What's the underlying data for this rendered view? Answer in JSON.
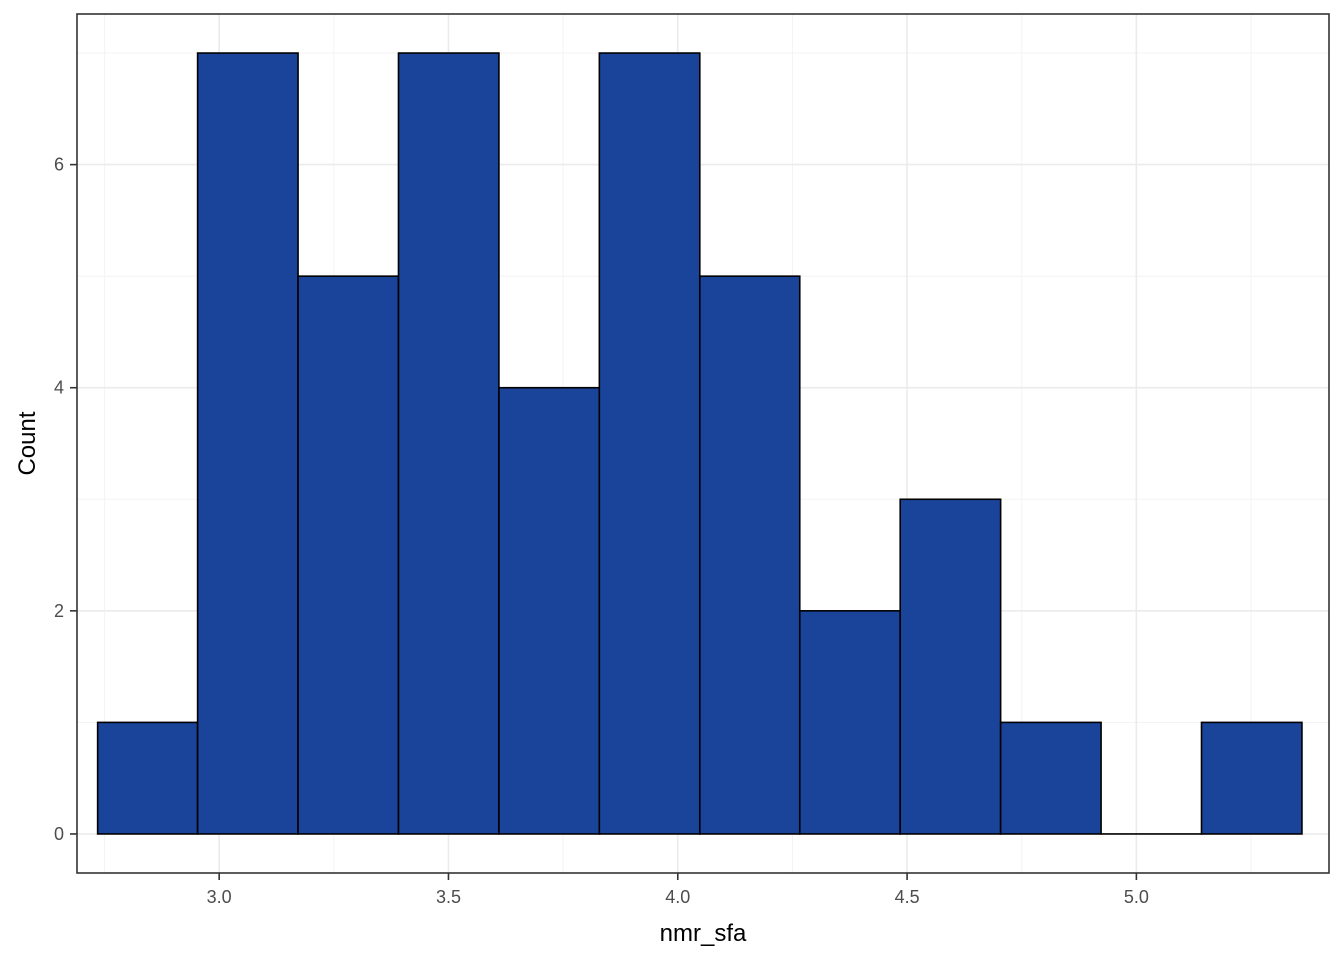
{
  "chart_data": {
    "type": "bar",
    "subtype": "histogram",
    "xlabel": "nmr_sfa",
    "ylabel": "Count",
    "xlim": [
      2.69,
      5.42
    ],
    "ylim": [
      -0.35,
      7.35
    ],
    "x_ticks": [
      3.0,
      3.5,
      4.0,
      4.5,
      5.0
    ],
    "x_tick_labels": [
      "3.0",
      "3.5",
      "4.0",
      "4.5",
      "5.0"
    ],
    "y_ticks": [
      0,
      2,
      4,
      6
    ],
    "y_tick_labels": [
      "0",
      "2",
      "4",
      "6"
    ],
    "bins": [
      {
        "x_start": 2.735,
        "x_end": 2.953,
        "count": 1
      },
      {
        "x_start": 2.953,
        "x_end": 3.172,
        "count": 7
      },
      {
        "x_start": 3.172,
        "x_end": 3.391,
        "count": 5
      },
      {
        "x_start": 3.391,
        "x_end": 3.61,
        "count": 7
      },
      {
        "x_start": 3.61,
        "x_end": 3.829,
        "count": 4
      },
      {
        "x_start": 3.829,
        "x_end": 4.048,
        "count": 7
      },
      {
        "x_start": 4.048,
        "x_end": 4.266,
        "count": 5
      },
      {
        "x_start": 4.266,
        "x_end": 4.485,
        "count": 2
      },
      {
        "x_start": 4.485,
        "x_end": 4.704,
        "count": 3
      },
      {
        "x_start": 4.704,
        "x_end": 4.923,
        "count": 1
      },
      {
        "x_start": 4.923,
        "x_end": 5.142,
        "count": 0
      },
      {
        "x_start": 5.142,
        "x_end": 5.361,
        "count": 1
      }
    ],
    "grid": true,
    "legend": "none",
    "colors": {
      "bar_fill": "#1a4499",
      "bar_stroke": "#000000",
      "panel_border": "#333333",
      "grid_major": "#ebebeb",
      "grid_minor": "#f4f4f4"
    }
  }
}
